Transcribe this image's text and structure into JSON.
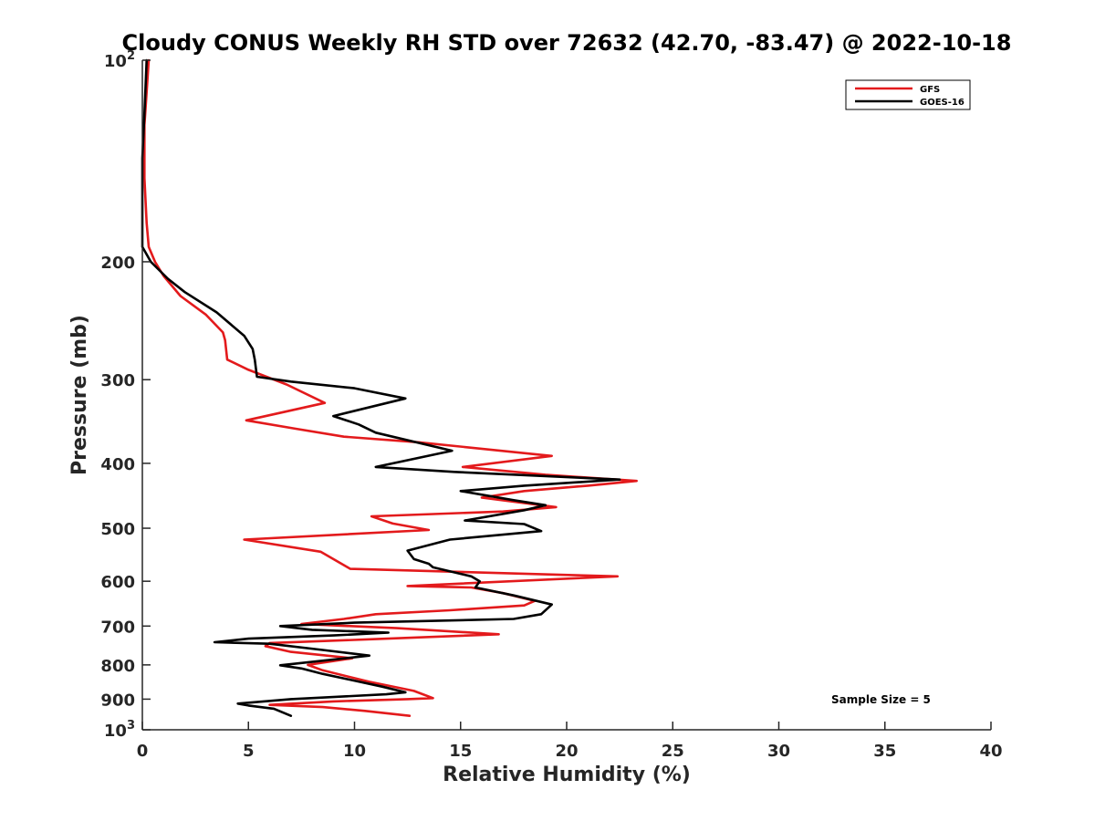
{
  "chart_data": {
    "type": "line",
    "title": "Cloudy CONUS Weekly RH STD over 72632 (42.70, -83.47) @ 2022-10-18",
    "xlabel": "Relative Humidity (%)",
    "ylabel": "Pressure (mb)",
    "xlim": [
      0,
      40
    ],
    "ylim": [
      100,
      1000
    ],
    "y_scale": "log",
    "y_reversed": true,
    "grid": false,
    "legend_position": "top-right",
    "x_ticks": [
      0,
      5,
      10,
      15,
      20,
      25,
      30,
      35,
      40
    ],
    "y_ticks": [
      100,
      200,
      300,
      400,
      500,
      600,
      700,
      800,
      900,
      1000
    ],
    "y_tick_labels": [
      {
        "base": "10",
        "exp": "2"
      },
      {
        "base": "200",
        "exp": ""
      },
      {
        "base": "300",
        "exp": ""
      },
      {
        "base": "400",
        "exp": ""
      },
      {
        "base": "500",
        "exp": ""
      },
      {
        "base": "600",
        "exp": ""
      },
      {
        "base": "700",
        "exp": ""
      },
      {
        "base": "800",
        "exp": ""
      },
      {
        "base": "900",
        "exp": ""
      },
      {
        "base": "10",
        "exp": "3"
      }
    ],
    "series": [
      {
        "name": "GFS",
        "color": "#e31a1c",
        "points": [
          [
            0.3,
            100
          ],
          [
            0.1,
            125
          ],
          [
            0.1,
            150
          ],
          [
            0.2,
            175
          ],
          [
            0.3,
            190
          ],
          [
            0.6,
            200
          ],
          [
            1.0,
            210
          ],
          [
            1.8,
            225
          ],
          [
            3.0,
            240
          ],
          [
            3.8,
            255
          ],
          [
            3.9,
            262
          ],
          [
            4.0,
            280
          ],
          [
            5.0,
            290
          ],
          [
            6.8,
            305
          ],
          [
            8.6,
            325
          ],
          [
            4.9,
            345
          ],
          [
            7.2,
            355
          ],
          [
            9.5,
            365
          ],
          [
            13.0,
            372
          ],
          [
            19.3,
            390
          ],
          [
            15.1,
            405
          ],
          [
            19.0,
            416
          ],
          [
            23.3,
            425
          ],
          [
            21.0,
            432
          ],
          [
            18.0,
            440
          ],
          [
            16.0,
            450
          ],
          [
            19.5,
            465
          ],
          [
            17.0,
            472
          ],
          [
            10.8,
            480
          ],
          [
            11.8,
            492
          ],
          [
            13.5,
            503
          ],
          [
            4.8,
            520
          ],
          [
            8.4,
            542
          ],
          [
            9.8,
            575
          ],
          [
            22.4,
            590
          ],
          [
            12.5,
            610
          ],
          [
            15.5,
            613
          ],
          [
            17.0,
            625
          ],
          [
            18.5,
            642
          ],
          [
            18.0,
            652
          ],
          [
            14.5,
            663
          ],
          [
            11.0,
            672
          ],
          [
            9.5,
            683
          ],
          [
            7.5,
            695
          ],
          [
            12.0,
            705
          ],
          [
            16.8,
            720
          ],
          [
            11.0,
            732
          ],
          [
            6.0,
            742
          ],
          [
            5.8,
            750
          ],
          [
            7.0,
            765
          ],
          [
            9.9,
            782
          ],
          [
            7.8,
            800
          ],
          [
            8.5,
            815
          ],
          [
            10.7,
            848
          ],
          [
            12.8,
            875
          ],
          [
            13.7,
            897
          ],
          [
            12.5,
            900
          ],
          [
            9.0,
            907
          ],
          [
            6.0,
            918
          ],
          [
            8.5,
            925
          ],
          [
            10.5,
            937
          ],
          [
            12.6,
            953
          ]
        ]
      },
      {
        "name": "GOES-16",
        "color": "#000000",
        "points": [
          [
            0.2,
            100
          ],
          [
            0.1,
            120
          ],
          [
            0.0,
            140
          ],
          [
            0.0,
            160
          ],
          [
            0.0,
            180
          ],
          [
            0.0,
            190
          ],
          [
            0.2,
            195
          ],
          [
            0.4,
            200
          ],
          [
            1.2,
            212
          ],
          [
            2.0,
            222
          ],
          [
            3.5,
            238
          ],
          [
            4.8,
            258
          ],
          [
            5.2,
            270
          ],
          [
            5.3,
            280
          ],
          [
            5.4,
            297
          ],
          [
            7.0,
            302
          ],
          [
            10.0,
            309
          ],
          [
            12.4,
            320
          ],
          [
            9.0,
            340
          ],
          [
            10.2,
            350
          ],
          [
            11.0,
            360
          ],
          [
            14.6,
            383
          ],
          [
            11.0,
            405
          ],
          [
            14.7,
            412
          ],
          [
            22.5,
            423
          ],
          [
            18.0,
            432
          ],
          [
            15.0,
            440
          ],
          [
            17.5,
            454
          ],
          [
            19.0,
            462
          ],
          [
            18.0,
            470
          ],
          [
            15.2,
            487
          ],
          [
            18.0,
            493
          ],
          [
            18.8,
            505
          ],
          [
            14.5,
            520
          ],
          [
            12.5,
            540
          ],
          [
            12.8,
            556
          ],
          [
            13.5,
            565
          ],
          [
            13.7,
            572
          ],
          [
            15.5,
            590
          ],
          [
            15.9,
            600
          ],
          [
            15.7,
            613
          ],
          [
            17.5,
            630
          ],
          [
            19.3,
            650
          ],
          [
            18.8,
            672
          ],
          [
            17.5,
            683
          ],
          [
            10.0,
            692
          ],
          [
            6.5,
            700
          ],
          [
            8.0,
            709
          ],
          [
            11.6,
            716
          ],
          [
            9.0,
            723
          ],
          [
            5.0,
            731
          ],
          [
            3.4,
            740
          ],
          [
            6.0,
            744
          ],
          [
            8.5,
            760
          ],
          [
            10.7,
            775
          ],
          [
            6.5,
            801
          ],
          [
            7.5,
            810
          ],
          [
            8.5,
            825
          ],
          [
            11.3,
            862
          ],
          [
            12.4,
            879
          ],
          [
            11.5,
            885
          ],
          [
            7.0,
            900
          ],
          [
            4.5,
            914
          ],
          [
            5.0,
            920
          ],
          [
            6.2,
            930
          ],
          [
            7.0,
            953
          ]
        ]
      }
    ],
    "annotation": "Sample Size = 5"
  }
}
